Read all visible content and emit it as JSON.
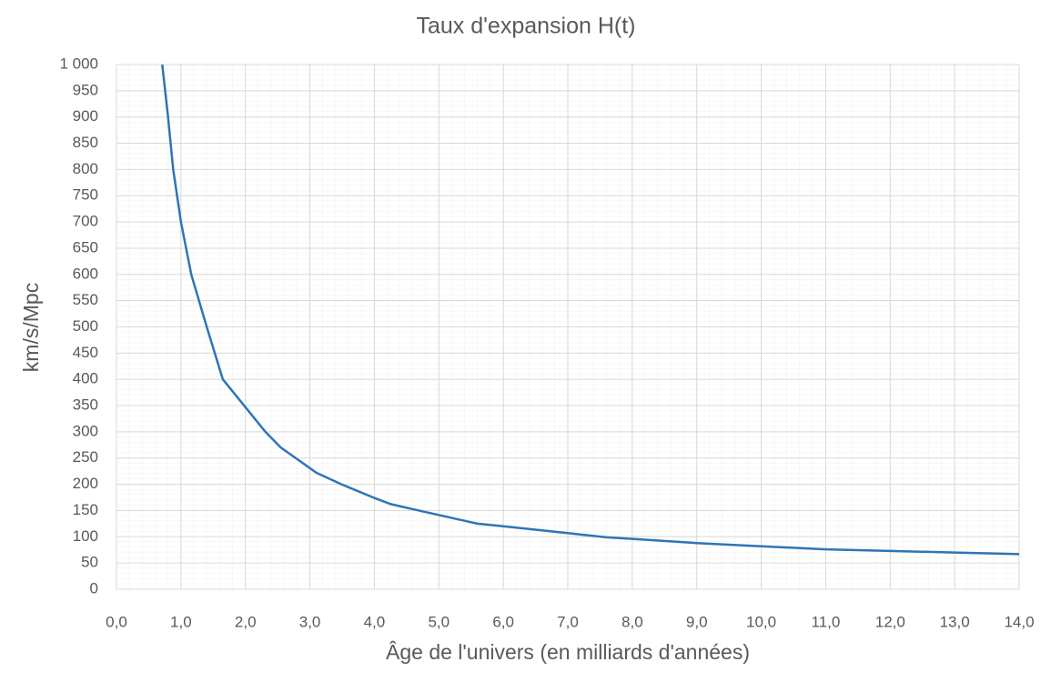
{
  "chart_data": {
    "type": "line",
    "title": "Taux d'expansion H(t)",
    "x_label": "Âge de l'univers (en milliards d'années)",
    "y_label": "km/s/Mpc",
    "x": [
      0.71,
      0.8,
      0.88,
      1.0,
      1.16,
      1.4,
      1.65,
      1.98,
      2.31,
      2.55,
      2.78,
      3.1,
      3.49,
      3.98,
      4.26,
      4.69,
      5.6,
      6.0,
      7.0,
      7.6,
      8.0,
      9.0,
      10.0,
      11.0,
      12.0,
      13.0,
      14.0
    ],
    "values": [
      1000,
      900,
      800,
      700,
      600,
      500,
      400,
      350,
      300,
      270,
      250,
      222,
      200,
      175,
      162,
      150,
      125,
      120,
      107,
      99,
      96,
      88,
      82,
      76,
      73,
      70,
      67
    ],
    "color": "#2e75b6",
    "xlim": [
      0,
      14
    ],
    "xticks": [
      {
        "value": 0,
        "label": "0,0"
      },
      {
        "value": 1,
        "label": "1,0"
      },
      {
        "value": 2,
        "label": "2,0"
      },
      {
        "value": 3,
        "label": "3,0"
      },
      {
        "value": 4,
        "label": "4,0"
      },
      {
        "value": 5,
        "label": "5,0"
      },
      {
        "value": 6,
        "label": "6,0"
      },
      {
        "value": 7,
        "label": "7,0"
      },
      {
        "value": 8,
        "label": "8,0"
      },
      {
        "value": 9,
        "label": "9,0"
      },
      {
        "value": 10,
        "label": "10,0"
      },
      {
        "value": 11,
        "label": "11,0"
      },
      {
        "value": 12,
        "label": "12,0"
      },
      {
        "value": 13,
        "label": "13,0"
      },
      {
        "value": 14,
        "label": "14,0"
      }
    ],
    "ylim": [
      0,
      1000
    ],
    "yticks": [
      0,
      50,
      100,
      150,
      200,
      250,
      300,
      350,
      400,
      450,
      500,
      550,
      600,
      650,
      700,
      750,
      800,
      850,
      900,
      950,
      {
        "value": 1000,
        "label": "1 000"
      }
    ],
    "grid": true
  }
}
